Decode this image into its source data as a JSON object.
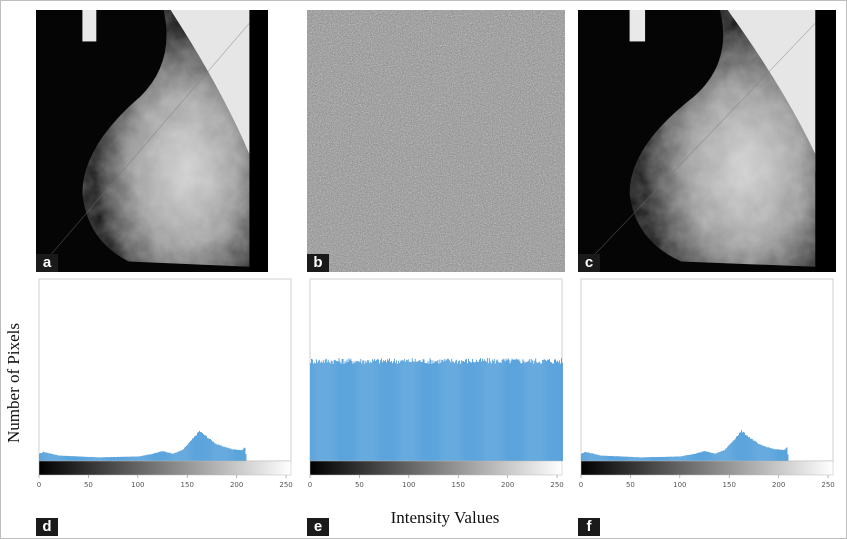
{
  "panel_labels": [
    "a",
    "b",
    "c",
    "d",
    "e",
    "f"
  ],
  "images": [
    {
      "panel": "a",
      "content": "mammogram"
    },
    {
      "panel": "b",
      "content": "noise"
    },
    {
      "panel": "c",
      "content": "mammogram"
    }
  ],
  "axis_labels": {
    "y": "Number of Pixels",
    "x": "Intensity Values"
  },
  "chart_data": [
    {
      "type": "bar",
      "panel": "d",
      "xlabel": "Intensity Values",
      "ylabel": "Number of Pixels",
      "xlim": [
        0,
        255
      ],
      "xticks": [
        0,
        50,
        100,
        150,
        200,
        250
      ],
      "grid": false,
      "profile": [
        [
          0,
          0.04
        ],
        [
          4,
          0.05
        ],
        [
          20,
          0.03
        ],
        [
          60,
          0.02
        ],
        [
          100,
          0.025
        ],
        [
          115,
          0.04
        ],
        [
          125,
          0.055
        ],
        [
          135,
          0.04
        ],
        [
          145,
          0.06
        ],
        [
          155,
          0.12
        ],
        [
          162,
          0.165
        ],
        [
          170,
          0.13
        ],
        [
          180,
          0.09
        ],
        [
          195,
          0.065
        ],
        [
          205,
          0.06
        ],
        [
          208,
          0.075
        ],
        [
          210,
          0.0
        ],
        [
          255,
          0.0
        ]
      ]
    },
    {
      "type": "bar",
      "panel": "e",
      "xlabel": "Intensity Values",
      "ylabel": "Number of Pixels",
      "xlim": [
        0,
        255
      ],
      "xticks": [
        0,
        50,
        100,
        150,
        200,
        250
      ],
      "grid": false,
      "profile": [
        [
          0,
          0.55
        ],
        [
          255,
          0.55
        ]
      ]
    },
    {
      "type": "bar",
      "panel": "f",
      "xlabel": "Intensity Values",
      "ylabel": "Number of Pixels",
      "xlim": [
        0,
        255
      ],
      "xticks": [
        0,
        50,
        100,
        150,
        200,
        250
      ],
      "grid": false,
      "profile": [
        [
          0,
          0.04
        ],
        [
          4,
          0.05
        ],
        [
          20,
          0.03
        ],
        [
          60,
          0.02
        ],
        [
          100,
          0.025
        ],
        [
          115,
          0.04
        ],
        [
          125,
          0.055
        ],
        [
          135,
          0.04
        ],
        [
          145,
          0.06
        ],
        [
          155,
          0.12
        ],
        [
          162,
          0.165
        ],
        [
          170,
          0.13
        ],
        [
          180,
          0.09
        ],
        [
          195,
          0.065
        ],
        [
          205,
          0.06
        ],
        [
          208,
          0.075
        ],
        [
          210,
          0.0
        ],
        [
          255,
          0.0
        ]
      ]
    }
  ],
  "colors": {
    "bars": "#3f94d6",
    "badge": "#1a1a1a"
  }
}
